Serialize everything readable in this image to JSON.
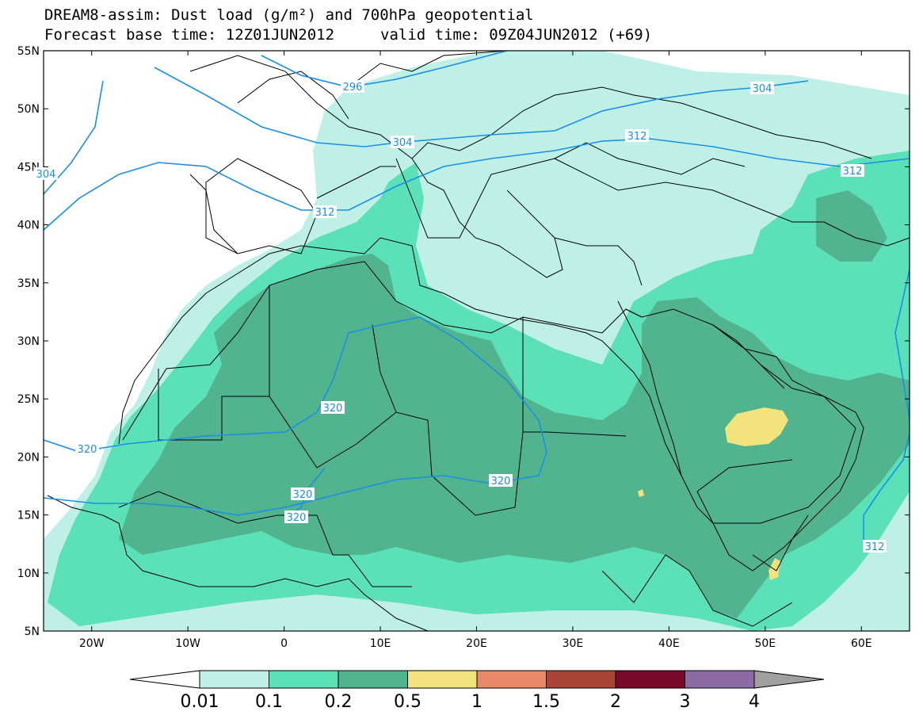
{
  "title_line1": "DREAM8-assim: Dust load (g/m²) and 700hPa geopotential",
  "title_line2_base": "Forecast base time: 12Z01JUN2012",
  "title_line2_valid": "valid time: 09Z04JUN2012 (+69)",
  "map": {
    "lon_range": [
      -25,
      65
    ],
    "lat_range": [
      5,
      55
    ],
    "lat_ticks": [
      "55N",
      "50N",
      "45N",
      "40N",
      "35N",
      "30N",
      "25N",
      "20N",
      "15N",
      "10N",
      "5N"
    ],
    "lon_ticks": [
      "20W",
      "10W",
      "0",
      "10E",
      "20E",
      "30E",
      "40E",
      "50E",
      "60E"
    ]
  },
  "contour_labels": [
    "296",
    "304",
    "304",
    "304",
    "312",
    "312",
    "312",
    "312",
    "320",
    "320",
    "320",
    "320",
    "320"
  ],
  "colorbar": {
    "levels": [
      "0.01",
      "0.1",
      "0.2",
      "0.5",
      "1",
      "1.5",
      "2",
      "3",
      "4"
    ],
    "colors": [
      "#bff0e8",
      "#5ce0b8",
      "#52b48e",
      "#f2e37d",
      "#e8886a",
      "#a94437",
      "#7b0a2a",
      "#8c6aa3",
      "#a0a0a0"
    ],
    "ocean_color": "#ffffff",
    "contour_color": "#1a8fe6"
  }
}
